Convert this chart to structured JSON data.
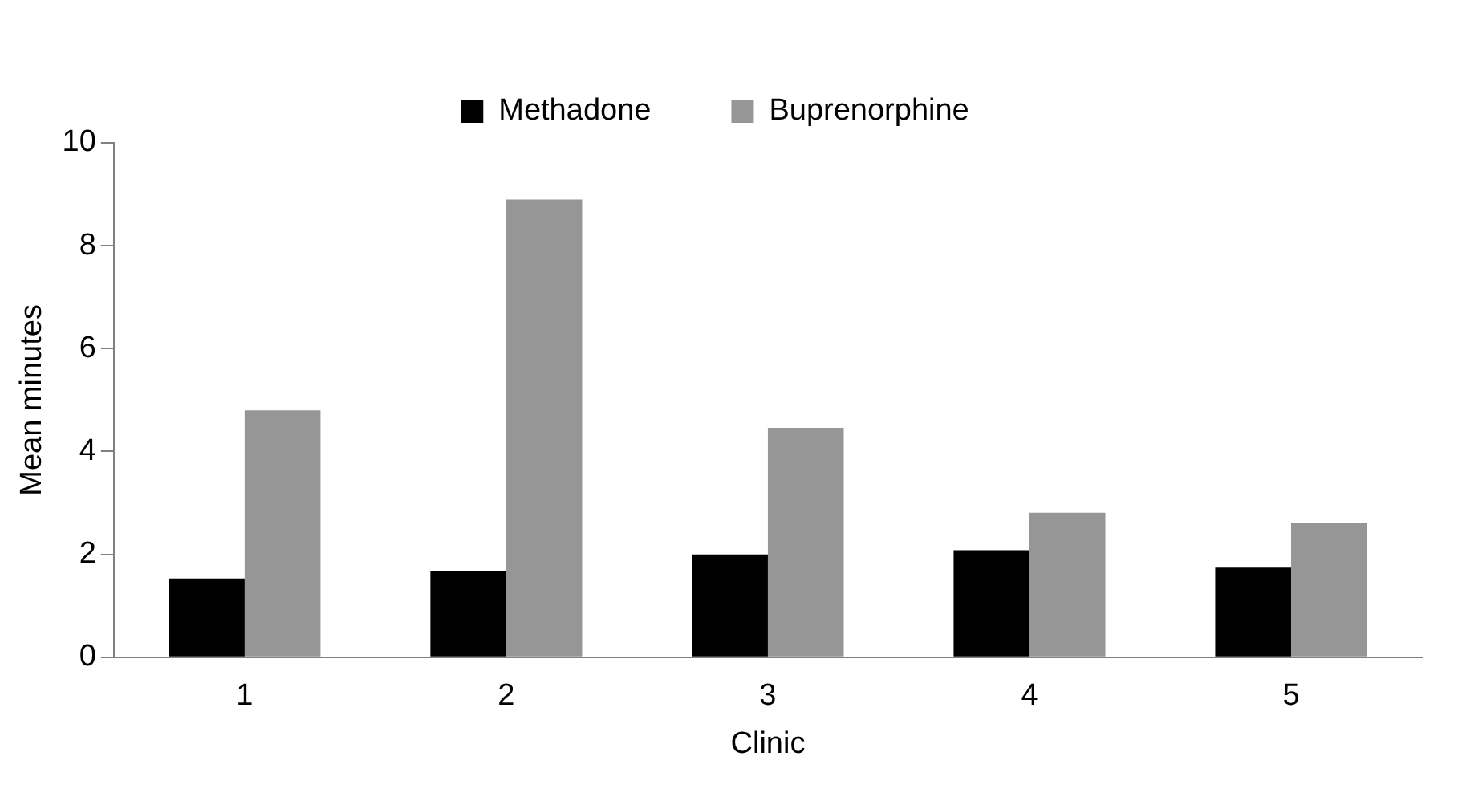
{
  "chart_data": {
    "type": "bar",
    "xlabel": "Clinic",
    "ylabel": "Mean minutes",
    "categories": [
      "1",
      "2",
      "3",
      "4",
      "5"
    ],
    "series": [
      {
        "name": "Methadone",
        "color": "#000000",
        "values": [
          1.53,
          1.67,
          2.0,
          2.08,
          1.74
        ]
      },
      {
        "name": "Buprenorphine",
        "color": "#969696",
        "values": [
          4.8,
          8.9,
          4.46,
          2.81,
          2.61
        ]
      }
    ],
    "ylim": [
      0,
      10
    ],
    "yticks": [
      0,
      2,
      4,
      6,
      8,
      10
    ],
    "grid": false,
    "legend": "top"
  }
}
